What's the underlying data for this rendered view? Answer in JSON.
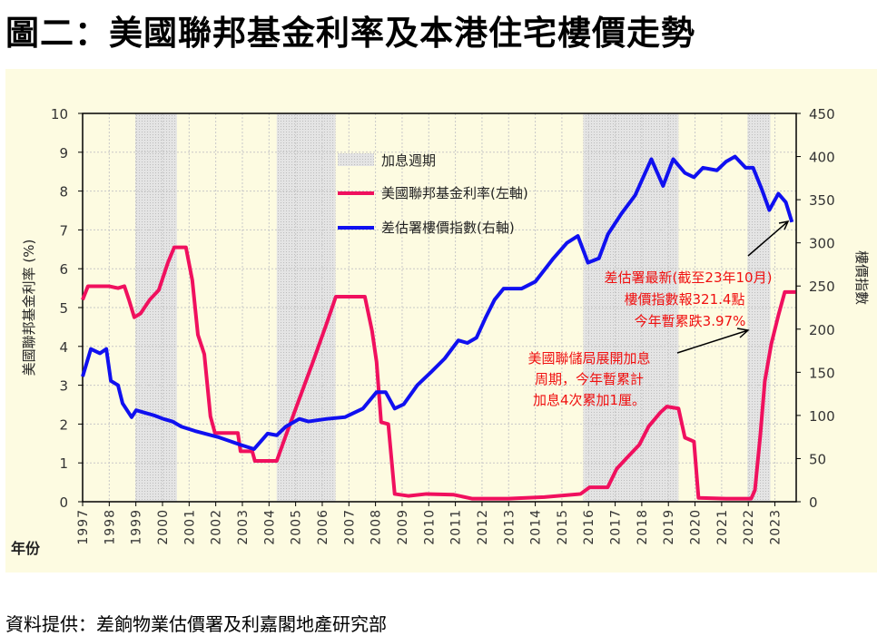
{
  "title": "圖二：美國聯邦基金利率及本港住宅樓價走勢",
  "source": "資料提供：差餉物業估價署及利嘉閣地產研究部",
  "chart_data": {
    "type": "line",
    "title": "圖二：美國聯邦基金利率及本港住宅樓價走勢",
    "xlabel": "年份",
    "ylabel": "美國聯邦基金利率 (%)",
    "y2label": "樓價指數",
    "xlim": [
      1997,
      2023.8
    ],
    "ylim": [
      0,
      10
    ],
    "y2lim": [
      0,
      450
    ],
    "x_ticks": [
      "1997",
      "1998",
      "1999",
      "2000",
      "2001",
      "2002",
      "2003",
      "2004",
      "2005",
      "2006",
      "2007",
      "2008",
      "2009",
      "2010",
      "2011",
      "2012",
      "2013",
      "2014",
      "2015",
      "2016",
      "2017",
      "2018",
      "2019",
      "2020",
      "2021",
      "2022",
      "2023"
    ],
    "y_ticks": [
      "0",
      "1",
      "2",
      "3",
      "4",
      "5",
      "6",
      "7",
      "8",
      "9",
      "10"
    ],
    "y2_ticks": [
      "0",
      "50",
      "100",
      "150",
      "200",
      "250",
      "300",
      "350",
      "400",
      "450"
    ],
    "grid": true,
    "legend_position": "top-center",
    "shaded_label": "加息週期",
    "shaded_periods": [
      [
        1998.98,
        2000.54
      ],
      [
        2004.29,
        2006.5
      ],
      [
        2015.8,
        2019.38
      ],
      [
        2021.97,
        2022.83
      ]
    ],
    "series": [
      {
        "name": "美國聯邦基金利率(左軸)",
        "axis": "left",
        "color": "#f0105e",
        "x": [
          1997.0,
          1997.2,
          1997.99,
          1998.33,
          1998.57,
          1998.74,
          1998.94,
          1999.18,
          1999.52,
          1999.86,
          2000.2,
          2000.44,
          2000.88,
          2001.12,
          2001.33,
          2001.57,
          2001.8,
          2001.97,
          2002.83,
          2002.93,
          2003.37,
          2003.47,
          2004.29,
          2004.63,
          2005.14,
          2005.65,
          2006.17,
          2006.51,
          2007.6,
          2007.87,
          2008.04,
          2008.21,
          2008.48,
          2008.72,
          2009.23,
          2009.91,
          2010.94,
          2011.62,
          2012.98,
          2014.34,
          2015.7,
          2016.04,
          2016.72,
          2017.06,
          2017.4,
          2017.91,
          2018.26,
          2018.7,
          2018.94,
          2019.38,
          2019.62,
          2019.96,
          2020.13,
          2021.16,
          2022.11,
          2022.25,
          2022.45,
          2022.62,
          2022.86,
          2023.13,
          2023.37,
          2023.78
        ],
        "y": [
          5.2,
          5.55,
          5.55,
          5.5,
          5.55,
          5.2,
          4.75,
          4.85,
          5.2,
          5.45,
          6.15,
          6.55,
          6.55,
          5.7,
          4.3,
          3.8,
          2.2,
          1.77,
          1.77,
          1.3,
          1.3,
          1.05,
          1.05,
          1.7,
          2.65,
          3.6,
          4.6,
          5.28,
          5.28,
          4.4,
          3.6,
          2.05,
          2.0,
          0.2,
          0.15,
          0.2,
          0.18,
          0.08,
          0.08,
          0.12,
          0.2,
          0.37,
          0.37,
          0.85,
          1.1,
          1.47,
          1.94,
          2.3,
          2.45,
          2.4,
          1.65,
          1.55,
          0.1,
          0.08,
          0.08,
          0.3,
          1.7,
          3.1,
          4.05,
          4.8,
          5.4,
          5.4
        ]
      },
      {
        "name": "差估署樓價指數(右軸)",
        "axis": "right",
        "color": "#1010f0",
        "x": [
          1997.0,
          1997.31,
          1997.65,
          1997.89,
          1998.06,
          1998.33,
          1998.5,
          1998.84,
          1999.01,
          1999.35,
          1999.69,
          2000.03,
          2000.37,
          2000.71,
          2001.22,
          2002.08,
          2002.93,
          2003.44,
          2003.95,
          2004.29,
          2004.63,
          2005.14,
          2005.48,
          2006.17,
          2006.85,
          2007.53,
          2008.04,
          2008.38,
          2008.72,
          2009.06,
          2009.57,
          2010.08,
          2010.6,
          2011.11,
          2011.45,
          2011.79,
          2012.13,
          2012.47,
          2012.81,
          2013.49,
          2014.0,
          2014.68,
          2015.19,
          2015.6,
          2015.98,
          2016.39,
          2016.73,
          2017.24,
          2017.75,
          2018.36,
          2018.8,
          2019.18,
          2019.62,
          2019.96,
          2020.3,
          2020.82,
          2021.16,
          2021.5,
          2021.9,
          2022.18,
          2022.52,
          2022.79,
          2023.13,
          2023.41,
          2023.64
        ],
        "y": [
          145,
          177,
          172,
          177,
          140,
          135,
          114,
          98,
          106,
          103,
          100,
          96,
          93,
          87,
          82,
          75,
          66,
          61,
          79,
          77,
          87,
          96,
          93,
          96,
          98,
          108,
          127,
          127,
          108,
          113,
          135,
          150,
          166,
          187,
          184,
          190,
          213,
          234,
          247,
          247,
          255,
          282,
          300,
          308,
          277,
          282,
          310,
          334,
          355,
          397,
          366,
          397,
          381,
          376,
          387,
          384,
          394,
          400,
          387,
          387,
          361,
          338,
          357,
          347,
          324
        ]
      }
    ],
    "legend": [
      "加息週期",
      "美國聯邦基金利率(左軸)",
      "差估署樓價指數(右軸)"
    ],
    "annotations": [
      {
        "lines": [
          "差估署最新(截至23年10月)",
          "樓價指數報321.4點",
          "今年暫累跌3.97%"
        ]
      },
      {
        "lines": [
          "美國聯儲局展開加息",
          "周期，今年暫累計",
          "加息4次累加1厘。"
        ]
      }
    ]
  }
}
